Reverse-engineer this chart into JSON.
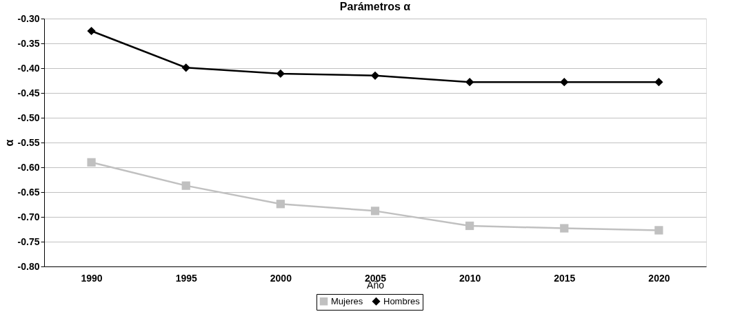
{
  "chart_data": {
    "type": "line",
    "title": "Parámetros α",
    "xlabel": "Año",
    "ylabel": "α",
    "categories": [
      "1990",
      "1995",
      "2000",
      "2005",
      "2010",
      "2015",
      "2020"
    ],
    "series": [
      {
        "name": "Mujeres",
        "color": "#c0c0c0",
        "marker": "square",
        "values": [
          -0.59,
          -0.637,
          -0.674,
          -0.688,
          -0.718,
          -0.723,
          -0.727
        ]
      },
      {
        "name": "Hombres",
        "color": "#000000",
        "marker": "diamond",
        "values": [
          -0.325,
          -0.399,
          -0.411,
          -0.415,
          -0.428,
          -0.428,
          -0.428
        ]
      }
    ],
    "ylim": [
      -0.8,
      -0.3
    ],
    "yticks": [
      {
        "value": -0.8,
        "label": "-0.80"
      },
      {
        "value": -0.75,
        "label": "-0.75"
      },
      {
        "value": -0.7,
        "label": "-0.70"
      },
      {
        "value": -0.65,
        "label": "-0.65"
      },
      {
        "value": -0.6,
        "label": "-0.60"
      },
      {
        "value": -0.55,
        "label": "-0.55"
      },
      {
        "value": -0.5,
        "label": "-0.50"
      },
      {
        "value": -0.45,
        "label": "-0.45"
      },
      {
        "value": -0.4,
        "label": "-0.40"
      },
      {
        "value": -0.35,
        "label": "-0.35"
      },
      {
        "value": -0.3,
        "label": "-0.30"
      }
    ],
    "grid": "y",
    "legend": "bottom",
    "line_style": "solid"
  }
}
